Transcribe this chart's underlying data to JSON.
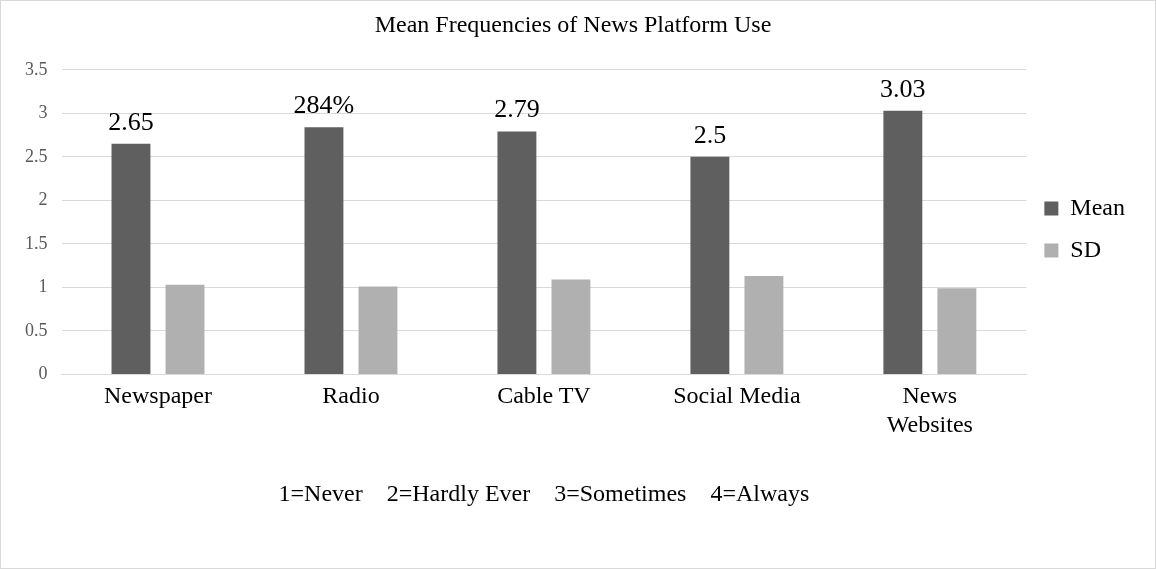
{
  "chart_data": {
    "type": "bar",
    "title": "Mean Frequencies of News Platform Use",
    "categories": [
      "Newspaper",
      "Radio",
      "Cable TV",
      "Social Media",
      "News Websites"
    ],
    "series": [
      {
        "name": "Mean",
        "color": "#5f5f5f",
        "values": [
          2.65,
          2.84,
          2.79,
          2.5,
          3.03
        ],
        "value_labels": [
          "2.65",
          "284%",
          "2.79",
          "2.5",
          "3.03"
        ]
      },
      {
        "name": "SD",
        "color": "#b0b0b0",
        "values": [
          1.03,
          1.01,
          1.09,
          1.13,
          0.99
        ]
      }
    ],
    "ylim": [
      0,
      3.5
    ],
    "yticks": [
      0,
      0.5,
      1,
      1.5,
      2,
      2.5,
      3,
      3.5
    ],
    "grid": "y",
    "legend": "right",
    "annotations": [
      "1=Never    2=Hardly Ever    3=Sometimes    4=Always"
    ]
  }
}
